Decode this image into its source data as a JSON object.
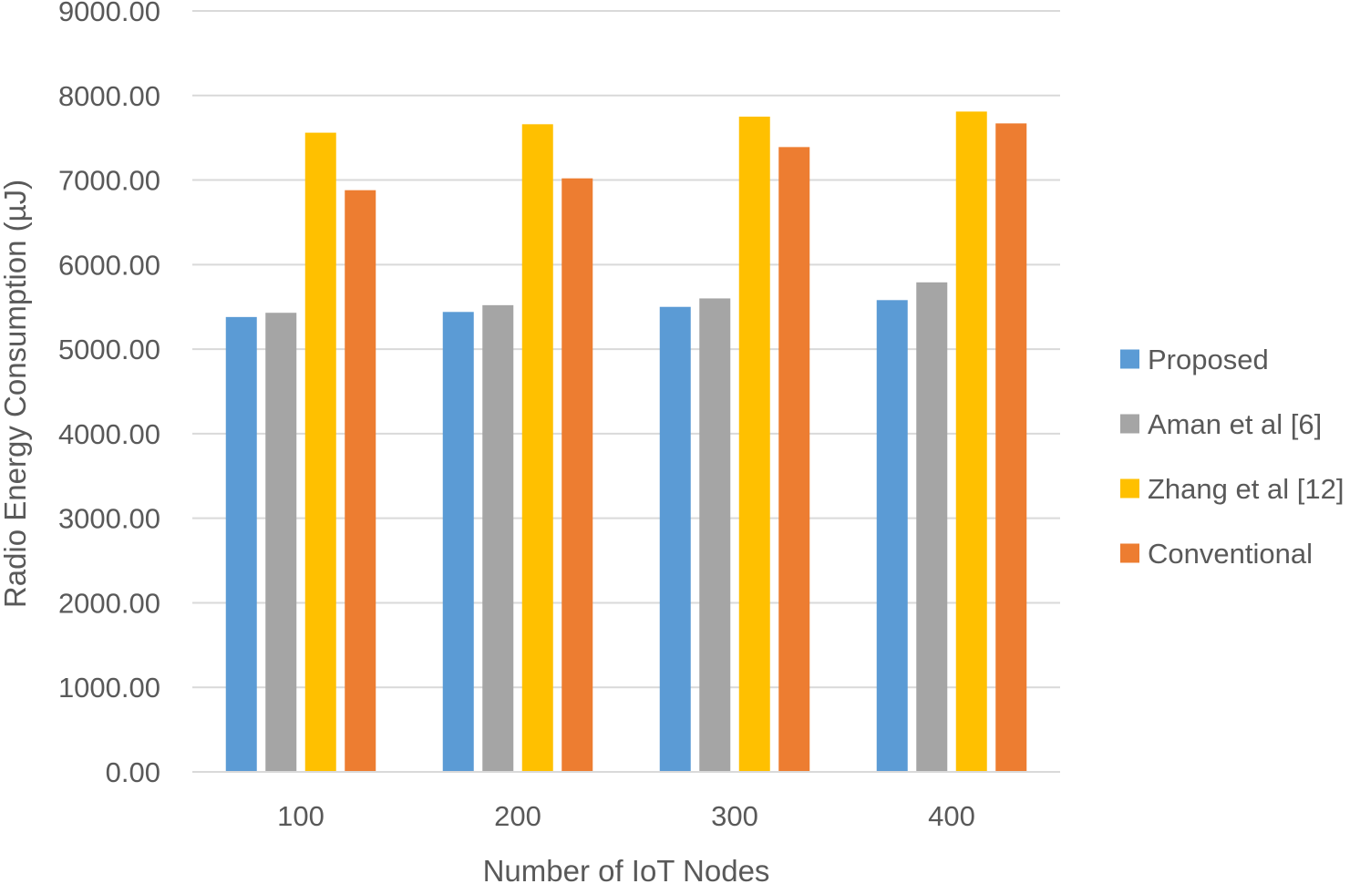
{
  "chart_data": {
    "type": "bar",
    "title": "",
    "xlabel": "Number of IoT Nodes",
    "ylabel": "Radio Energy Consumption (µJ)",
    "ylim": [
      0,
      9000
    ],
    "ytick_step": 1000,
    "ytick_labels": [
      "0.00",
      "1000.00",
      "2000.00",
      "3000.00",
      "4000.00",
      "5000.00",
      "6000.00",
      "7000.00",
      "8000.00",
      "9000.00"
    ],
    "categories": [
      "100",
      "200",
      "300",
      "400"
    ],
    "grid": true,
    "legend_position": "right",
    "series": [
      {
        "name": "Proposed",
        "color": "#5B9BD5",
        "values": [
          5380,
          5440,
          5500,
          5580
        ]
      },
      {
        "name": "Aman et al [6]",
        "color": "#A5A5A5",
        "values": [
          5430,
          5520,
          5600,
          5790
        ]
      },
      {
        "name": "Zhang et al [12]",
        "color": "#FFC000",
        "values": [
          7560,
          7660,
          7750,
          7810
        ]
      },
      {
        "name": "Conventional",
        "color": "#ED7D31",
        "values": [
          6880,
          7020,
          7390,
          7670
        ]
      }
    ]
  }
}
